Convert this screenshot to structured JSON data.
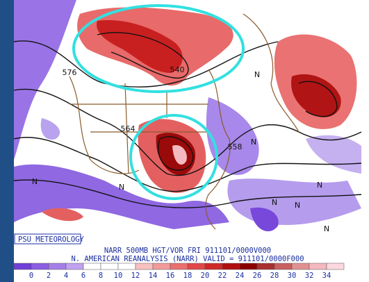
{
  "map": {
    "labels": [
      "540",
      "576",
      "564",
      "558",
      "N",
      "N",
      "N",
      "N",
      "N",
      "N",
      "N",
      "N"
    ],
    "credit": "PSU METEOROLOGY",
    "line1": "NARR 500MB HGT/VOR FRI 911101/0000V000",
    "line2": "N. AMERICAN REANALYSIS (NARR) VALID = 911101/0000F000"
  },
  "colorbar": {
    "ticks": [
      0,
      2,
      4,
      6,
      8,
      10,
      12,
      14,
      16,
      18,
      20,
      22,
      24,
      26,
      28,
      30,
      32,
      34
    ],
    "colors": [
      "#7040d8",
      "#8c5ee2",
      "#a67ee8",
      "#c0a2f0",
      "#ffffff",
      "#ffffff",
      "#ffffff",
      "#f8c0c0",
      "#f29a9a",
      "#ea7070",
      "#e04848",
      "#d02828",
      "#b01010",
      "#8a0000",
      "#a83030",
      "#c86060",
      "#e09090",
      "#f4b8c0",
      "#fcd8e0"
    ]
  }
}
